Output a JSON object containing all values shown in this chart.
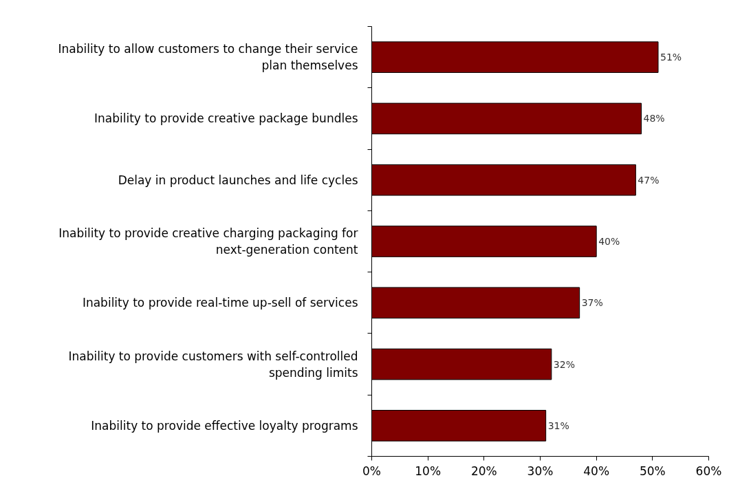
{
  "chart_data": {
    "type": "bar",
    "orientation": "horizontal",
    "categories": [
      "Inability to allow customers to change their service plan themselves",
      "Inability to provide creative package bundles",
      "Delay in product launches and life cycles",
      "Inability to provide creative charging packaging for next-generation content",
      "Inability to provide real-time up-sell of services",
      "Inability to provide customers with self-controlled spending limits",
      "Inability to provide effective loyalty programs"
    ],
    "values": [
      51,
      48,
      47,
      40,
      37,
      32,
      31
    ],
    "value_labels": [
      "51%",
      "48%",
      "47%",
      "40%",
      "37%",
      "32%",
      "31%"
    ],
    "color": "#800000",
    "xlim": [
      0,
      60
    ],
    "xticks": [
      {
        "value": 0,
        "label": "0%"
      },
      {
        "value": 10,
        "label": "10%"
      },
      {
        "value": 20,
        "label": "20%"
      },
      {
        "value": 30,
        "label": "30%"
      },
      {
        "value": 40,
        "label": "40%"
      },
      {
        "value": 50,
        "label": "50%"
      },
      {
        "value": 60,
        "label": "60%"
      }
    ],
    "grid": false
  }
}
